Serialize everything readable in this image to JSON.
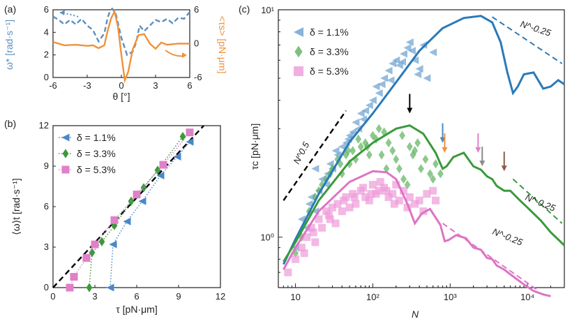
{
  "chart_data": [
    {
      "id": "a",
      "panel_label": "(a)",
      "type": "line",
      "xlabel": "θ [°]",
      "ylabel_left": "ω* [rad·s⁻¹]",
      "ylabel_right": "<τs> [pN·μm]",
      "xlim": [
        -6,
        6
      ],
      "ylim_left": [
        0,
        6
      ],
      "ylim_right": [
        -6,
        6
      ],
      "xticks": [
        "-6",
        "-3",
        "0",
        "3",
        "6"
      ],
      "yticks_left": [
        "0",
        "2",
        "4",
        "6"
      ],
      "yticks_right": [
        "-6",
        "0",
        "6"
      ],
      "series": [
        {
          "name": "ω*",
          "axis": "left",
          "style": "dashed",
          "color": "#5b8fc0",
          "x": [
            -6,
            -5.5,
            -5,
            -4.5,
            -4,
            -3.5,
            -3,
            -2.5,
            -2,
            -1.5,
            -1.2,
            -1,
            -0.8,
            -0.5,
            0,
            0.5,
            1,
            1.3,
            1.6,
            2,
            2.5,
            3,
            3.5,
            4,
            4.5,
            5,
            5.5,
            6
          ],
          "y": [
            5.4,
            5.1,
            4.7,
            5.1,
            4.7,
            5.2,
            4.6,
            4.2,
            3.2,
            3.9,
            5.3,
            5.9,
            6.1,
            5.7,
            3.5,
            2.0,
            2.3,
            3.1,
            4.6,
            4.1,
            4.6,
            5.1,
            4.9,
            5.2,
            4.8,
            5.3,
            5.2,
            5.8
          ]
        },
        {
          "name": "<τs>",
          "axis": "right",
          "style": "solid",
          "color": "#f0923b",
          "x": [
            -6,
            -5,
            -4,
            -3,
            -2.5,
            -2,
            -1.5,
            -1.2,
            -0.9,
            -0.6,
            -0.3,
            0,
            0.3,
            0.6,
            1,
            1.5,
            2,
            2.5,
            3,
            3.5,
            4,
            5,
            6
          ],
          "y": [
            0.3,
            -0.3,
            -0.2,
            -0.4,
            -0.3,
            -0.8,
            -0.3,
            2.3,
            4.5,
            5.7,
            3.0,
            -2.0,
            -6.5,
            -5.0,
            -1.0,
            1.5,
            1.7,
            0.0,
            -0.9,
            0.2,
            -0.2,
            0.0,
            0.0
          ]
        }
      ]
    },
    {
      "id": "b",
      "panel_label": "(b)",
      "type": "scatter",
      "xlabel": "τ [pN·μm]",
      "ylabel": "⟨ω⟩t [rad·s⁻¹]",
      "xlim": [
        0,
        12
      ],
      "ylim": [
        0,
        12
      ],
      "xticks": [
        "0",
        "3",
        "6",
        "9",
        "12"
      ],
      "yticks": [
        "0",
        "3",
        "6",
        "9",
        "12"
      ],
      "legend": [
        {
          "label": "δ = 1.1%",
          "color": "#4a88c7",
          "marker": "triangle-left"
        },
        {
          "label": "δ = 3.3%",
          "color": "#3a9a3a",
          "marker": "diamond"
        },
        {
          "label": "δ = 5.3%",
          "color": "#e080c8",
          "marker": "square"
        }
      ],
      "series": [
        {
          "name": "δ = 1.1%",
          "color": "#4a88c7",
          "marker": "triangle-left",
          "x": [
            4.1,
            4.3,
            5.3,
            6.4,
            7.7,
            8.9,
            9.8
          ],
          "y": [
            0,
            3.2,
            4.9,
            6.4,
            8.3,
            9.7,
            10.8
          ]
        },
        {
          "name": "δ = 3.3%",
          "color": "#3a9a3a",
          "marker": "diamond",
          "x": [
            2.6,
            2.8,
            3.5,
            4.4,
            5.6,
            6.5,
            7.5,
            9.3
          ],
          "y": [
            0,
            2.6,
            3.4,
            4.6,
            6.4,
            7.4,
            8.7,
            11.2
          ]
        },
        {
          "name": "δ = 5.3%",
          "color": "#e080c8",
          "marker": "square",
          "x": [
            1.2,
            1.5,
            2.4,
            3.0,
            4.4,
            6.0,
            7.9,
            9.8
          ],
          "y": [
            0,
            0.8,
            2.2,
            3.2,
            5.0,
            6.9,
            9.1,
            11.5
          ]
        }
      ],
      "reference_line": {
        "x": [
          0,
          10.8
        ],
        "y": [
          0,
          12
        ],
        "style": "dashed",
        "color": "#000000"
      }
    },
    {
      "id": "c",
      "panel_label": "(c)",
      "type": "scatter",
      "xlabel": "N",
      "ylabel": "τc [pN·μm]",
      "xscale": "log",
      "yscale": "log",
      "xlim": [
        6,
        30000
      ],
      "ylim": [
        0.6,
        10
      ],
      "xticks": [
        "10",
        "10²",
        "10³",
        "10⁴"
      ],
      "yticks": [
        "10⁰",
        "10¹"
      ],
      "legend": [
        {
          "label": "δ = 1.1%",
          "color": "#6a9fd0",
          "marker": "triangle-left"
        },
        {
          "label": "δ = 3.3%",
          "color": "#5cb05c",
          "marker": "diamond"
        },
        {
          "label": "δ = 5.3%",
          "color": "#ee9ad8",
          "marker": "square"
        }
      ],
      "annotations": [
        "N^0.5",
        "N^-0.25",
        "N^-0.25",
        "N^-0.25"
      ],
      "series": [
        {
          "name": "δ = 1.1% model",
          "type": "line",
          "color": "#2a7ab8",
          "x": [
            7,
            10,
            20,
            50,
            100,
            200,
            400,
            800,
            1500,
            2500,
            3500,
            4500,
            5500,
            6500,
            7500,
            9000,
            12000,
            16000,
            20000,
            25000,
            30000
          ],
          "y": [
            0.76,
            0.98,
            1.55,
            2.62,
            3.5,
            4.8,
            6.6,
            8.3,
            9.2,
            9.4,
            8.8,
            7.2,
            5.3,
            4.3,
            4.6,
            5.2,
            5.3,
            4.5,
            4.6,
            4.9,
            4.7
          ]
        },
        {
          "name": "δ = 3.3% model",
          "type": "line",
          "color": "#3a9a3a",
          "x": [
            7,
            10,
            20,
            50,
            100,
            200,
            300,
            450,
            650,
            800,
            900,
            1100,
            1500,
            2000,
            2500,
            3000,
            3500,
            4000,
            5000,
            6000,
            8000,
            10000,
            15000,
            20000,
            30000
          ],
          "y": [
            0.78,
            0.95,
            1.45,
            2.15,
            2.6,
            3.0,
            3.1,
            2.85,
            2.35,
            2.0,
            2.05,
            2.25,
            2.35,
            2.05,
            1.98,
            1.85,
            1.8,
            1.68,
            1.6,
            1.6,
            1.45,
            1.35,
            1.18,
            1.05,
            0.92
          ]
        },
        {
          "name": "δ = 5.3% model",
          "type": "line",
          "color": "#dd74c4",
          "x": [
            7,
            10,
            20,
            50,
            100,
            150,
            200,
            280,
            350,
            430,
            550,
            750,
            850,
            950,
            1200,
            1600,
            2000,
            2500,
            3000,
            3500,
            4000,
            5000,
            7000,
            9000,
            12000,
            16000,
            20000
          ],
          "y": [
            0.72,
            0.9,
            1.3,
            1.75,
            1.95,
            1.93,
            1.8,
            1.4,
            1.15,
            1.27,
            1.33,
            1.13,
            0.96,
            0.97,
            1.02,
            0.99,
            0.9,
            0.88,
            0.81,
            0.8,
            0.75,
            0.72,
            0.66,
            0.62,
            0.58,
            0.56,
            0.55
          ]
        },
        {
          "name": "δ = 1.1%",
          "type": "scatter",
          "color": "#6a9fd0",
          "marker": "triangle-left",
          "x": [
            10,
            12,
            14,
            16,
            18,
            20,
            22,
            25,
            28,
            30,
            35,
            40,
            45,
            50,
            55,
            60,
            65,
            70,
            80,
            90,
            100,
            110,
            120,
            140,
            160,
            180,
            200,
            220,
            250,
            280,
            300,
            350,
            400,
            450,
            500,
            600,
            15,
            18,
            26,
            33,
            48,
            75,
            130,
            170,
            240,
            320,
            380
          ],
          "y": [
            0.9,
            1.2,
            1.1,
            1.5,
            1.3,
            1.6,
            1.8,
            1.7,
            2.1,
            2.0,
            2.3,
            2.5,
            2.6,
            2.8,
            2.9,
            3.2,
            3.0,
            3.5,
            3.6,
            3.8,
            4.0,
            4.6,
            4.3,
            5.0,
            5.4,
            5.8,
            6.0,
            5.7,
            6.4,
            6.8,
            7.2,
            6.0,
            5.5,
            7.0,
            5.0,
            6.5,
            1.4,
            2.0,
            1.9,
            2.4,
            2.7,
            3.3,
            4.7,
            4.9,
            5.9,
            6.6,
            5.2
          ]
        },
        {
          "name": "δ = 3.3%",
          "type": "scatter",
          "color": "#5cb05c",
          "marker": "diamond",
          "x": [
            10,
            12,
            15,
            18,
            20,
            25,
            30,
            35,
            40,
            45,
            50,
            55,
            60,
            70,
            80,
            90,
            100,
            110,
            120,
            140,
            160,
            180,
            200,
            220,
            250,
            280,
            300,
            330,
            380,
            420,
            480,
            550,
            650,
            750,
            22,
            28,
            38,
            48,
            65,
            85,
            130,
            150,
            240,
            350,
            600
          ],
          "y": [
            0.85,
            1.0,
            1.3,
            1.5,
            1.6,
            1.8,
            2.0,
            2.2,
            1.9,
            2.3,
            2.1,
            2.4,
            2.2,
            2.5,
            2.6,
            2.3,
            2.8,
            2.7,
            3.0,
            2.9,
            2.6,
            2.4,
            2.2,
            2.0,
            1.8,
            1.7,
            2.5,
            2.3,
            2.6,
            2.0,
            2.2,
            1.9,
            2.1,
            1.9,
            1.7,
            1.9,
            2.1,
            2.4,
            2.7,
            2.5,
            2.3,
            2.0,
            2.8,
            2.4,
            1.8
          ]
        },
        {
          "name": "δ = 5.3%",
          "type": "scatter",
          "color": "#ee9ad8",
          "marker": "square",
          "x": [
            8,
            10,
            12,
            14,
            16,
            18,
            20,
            22,
            25,
            28,
            30,
            35,
            40,
            45,
            50,
            55,
            60,
            70,
            80,
            90,
            100,
            110,
            120,
            140,
            160,
            180,
            200,
            220,
            250,
            300,
            350,
            400,
            450,
            500,
            600,
            650,
            13,
            17,
            27,
            33,
            42,
            58,
            75,
            95,
            125,
            150,
            190,
            280
          ],
          "y": [
            0.7,
            0.8,
            0.9,
            1.0,
            1.1,
            0.95,
            1.2,
            1.1,
            1.3,
            1.2,
            1.35,
            1.4,
            1.3,
            1.5,
            1.35,
            1.55,
            1.4,
            1.6,
            1.5,
            1.45,
            1.7,
            1.55,
            1.6,
            1.65,
            1.5,
            1.55,
            1.7,
            1.45,
            1.6,
            1.5,
            1.4,
            1.45,
            1.3,
            1.55,
            1.6,
            1.45,
            0.85,
            1.05,
            1.25,
            1.15,
            1.45,
            1.5,
            1.65,
            1.55,
            1.75,
            1.6,
            1.4,
            1.35
          ]
        }
      ],
      "arrows": [
        {
          "N": 300,
          "color": "#000000"
        },
        {
          "N": 800,
          "color": "#4a88c7"
        },
        {
          "N": 850,
          "color": "#f0923b"
        },
        {
          "N": 2300,
          "color": "#e080c8"
        },
        {
          "N": 2600,
          "color": "#8a8a8a"
        },
        {
          "N": 5000,
          "color": "#8b5a4a"
        }
      ]
    }
  ],
  "labels": {
    "a_panel": "(a)",
    "b_panel": "(b)",
    "c_panel": "(c)",
    "a_xlabel": "θ [°]",
    "a_ylabel_left": "ω* [rad·s⁻¹]",
    "a_ylabel_right": "<τs> [pN·μm]",
    "b_xlabel": "τ [pN·μm]",
    "b_ylabel": "⟨ω⟩t [rad·s⁻¹]",
    "c_xlabel": "N",
    "c_ylabel": "τc [pN·μm]",
    "legend_1": "δ = 1.1%",
    "legend_2": "δ = 3.3%",
    "legend_3": "δ = 5.3%",
    "ann_n05": "N^0.5",
    "ann_blue": "N^-0.25",
    "ann_green": "N^-0.25",
    "ann_pink": "N^-0.25"
  }
}
